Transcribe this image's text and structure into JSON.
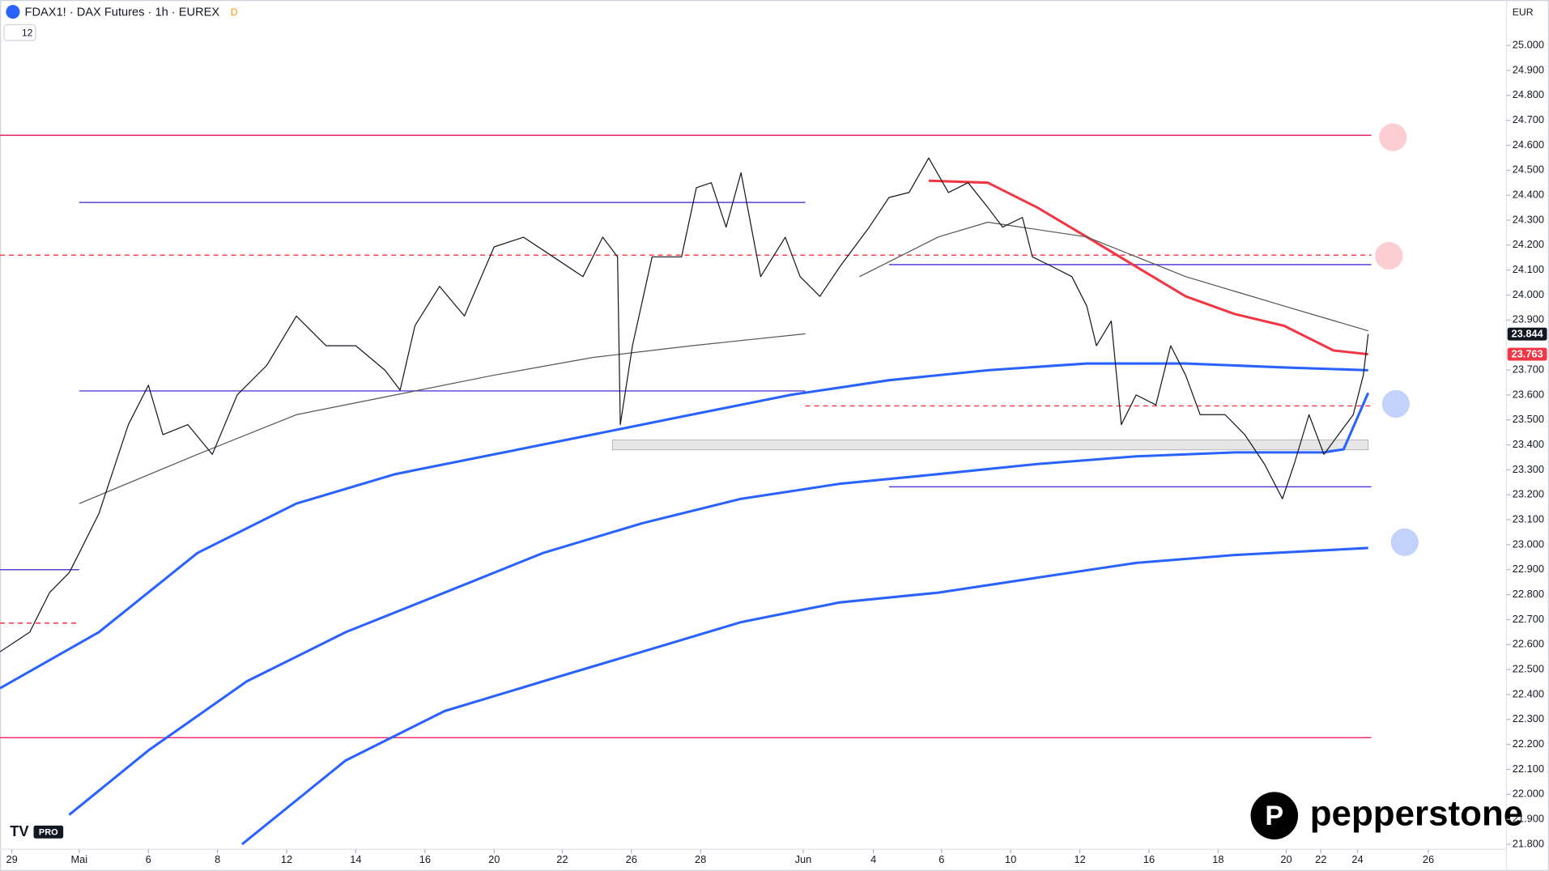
{
  "header": {
    "symbol": "FDAX1! · DAX Futures · 1h · EUREX",
    "badge": "D",
    "indicator_count": "12",
    "currency": "EUR"
  },
  "branding": {
    "logo": "pepperstone",
    "watermark": "PRO"
  },
  "chart_data": {
    "type": "line",
    "xlim": [
      0,
      43.57
    ],
    "xticks": [
      {
        "value": 0.34,
        "label": "29"
      },
      {
        "value": 2.29,
        "label": "Mai"
      },
      {
        "value": 4.29,
        "label": "6"
      },
      {
        "value": 6.29,
        "label": "8"
      },
      {
        "value": 8.29,
        "label": "12"
      },
      {
        "value": 10.29,
        "label": "14"
      },
      {
        "value": 12.29,
        "label": "16"
      },
      {
        "value": 14.29,
        "label": "20"
      },
      {
        "value": 16.26,
        "label": "22"
      },
      {
        "value": 18.26,
        "label": "26"
      },
      {
        "value": 20.26,
        "label": "28"
      },
      {
        "value": 23.23,
        "label": "Jun"
      },
      {
        "value": 25.26,
        "label": "4"
      },
      {
        "value": 27.23,
        "label": "6"
      },
      {
        "value": 29.23,
        "label": "10"
      },
      {
        "value": 31.23,
        "label": "12"
      },
      {
        "value": 33.23,
        "label": "16"
      },
      {
        "value": 35.23,
        "label": "18"
      },
      {
        "value": 37.2,
        "label": "20"
      },
      {
        "value": 38.2,
        "label": "22"
      },
      {
        "value": 39.26,
        "label": "24"
      },
      {
        "value": 41.31,
        "label": "26"
      }
    ],
    "ylim": [
      21780,
      25182
    ],
    "yticks": [
      {
        "value": 21800,
        "label": "21.800"
      },
      {
        "value": 21900,
        "label": "21.900"
      },
      {
        "value": 22000,
        "label": "22.000"
      },
      {
        "value": 22100,
        "label": "22.100"
      },
      {
        "value": 22200,
        "label": "22.200"
      },
      {
        "value": 22300,
        "label": "22.300"
      },
      {
        "value": 22400,
        "label": "22.400"
      },
      {
        "value": 22500,
        "label": "22.500"
      },
      {
        "value": 22600,
        "label": "22.600"
      },
      {
        "value": 22700,
        "label": "22.700"
      },
      {
        "value": 22800,
        "label": "22.800"
      },
      {
        "value": 22900,
        "label": "22.900"
      },
      {
        "value": 23000,
        "label": "23.000"
      },
      {
        "value": 23100,
        "label": "23.100"
      },
      {
        "value": 23200,
        "label": "23.200"
      },
      {
        "value": 23300,
        "label": "23.300"
      },
      {
        "value": 23400,
        "label": "23.400"
      },
      {
        "value": 23500,
        "label": "23.500"
      },
      {
        "value": 23600,
        "label": "23.600"
      },
      {
        "value": 23700,
        "label": "23.700"
      },
      {
        "value": 23900,
        "label": "23.900"
      },
      {
        "value": 24000,
        "label": "24.000"
      },
      {
        "value": 24100,
        "label": "24.100"
      },
      {
        "value": 24200,
        "label": "24.200"
      },
      {
        "value": 24300,
        "label": "24.300"
      },
      {
        "value": 24400,
        "label": "24.400"
      },
      {
        "value": 24500,
        "label": "24.500"
      },
      {
        "value": 24600,
        "label": "24.600"
      },
      {
        "value": 24700,
        "label": "24.700"
      },
      {
        "value": 24800,
        "label": "24.800"
      },
      {
        "value": 24900,
        "label": "24.900"
      },
      {
        "value": 25000,
        "label": "25.000"
      }
    ],
    "series": [
      {
        "color": "#131722",
        "width": 1,
        "x": [
          0,
          0.86,
          1.43,
          2,
          2.29,
          2.86,
          3.71,
          4.29,
          4.71,
          5.43,
          6.14,
          6.86,
          7.71,
          8.57,
          9.43,
          10.29,
          11.14,
          11.57,
          12,
          12.71,
          13.43,
          14.29,
          15.14,
          16,
          16.86,
          17.43,
          17.86,
          17.94,
          18.29,
          18.86,
          19.71,
          20.14,
          20.57,
          21,
          21.43,
          22,
          22.71,
          23.14,
          23.71,
          24.29,
          25.14,
          25.71,
          26.29,
          26.86,
          27.43,
          28,
          28.57,
          29,
          29.57,
          29.86,
          30.43,
          31,
          31.43,
          31.71,
          32.14,
          32.43,
          32.86,
          33.43,
          33.86,
          34.29,
          34.71,
          35.43,
          36,
          36.57,
          37.09,
          37.43,
          37.86,
          38.29,
          38.71,
          39.14,
          39.43,
          39.57
        ],
        "values": [
          22571,
          22650,
          22808,
          22888,
          22967,
          23125,
          23481,
          23639,
          23441,
          23481,
          23362,
          23600,
          23718,
          23916,
          23797,
          23797,
          23698,
          23619,
          23877,
          24035,
          23916,
          24193,
          24232,
          24153,
          24074,
          24232,
          24153,
          23481,
          23797,
          24153,
          24153,
          24430,
          24450,
          24272,
          24490,
          24074,
          24232,
          24074,
          23995,
          24114,
          24272,
          24391,
          24411,
          24549,
          24411,
          24450,
          24351,
          24272,
          24311,
          24153,
          24114,
          24074,
          23956,
          23797,
          23896,
          23481,
          23600,
          23560,
          23797,
          23679,
          23521,
          23521,
          23441,
          23323,
          23184,
          23323,
          23521,
          23362,
          23441,
          23521,
          23679,
          23844
        ]
      },
      {
        "color": "#2962ff",
        "width": 2.5,
        "x": [
          0,
          2.86,
          5.71,
          8.57,
          11.43,
          14.29,
          17.14,
          20,
          22.86,
          25.71,
          28.57,
          31.43,
          34.29,
          37.14,
          39.57
        ],
        "values": [
          22425,
          22650,
          22967,
          23165,
          23283,
          23362,
          23441,
          23521,
          23600,
          23659,
          23699,
          23726,
          23726,
          23710,
          23699
        ]
      },
      {
        "color": "#2962ff",
        "width": 2.5,
        "x": [
          2,
          4.29,
          7.14,
          10,
          12.86,
          15.71,
          18.57,
          21.43,
          24.29,
          27.14,
          30,
          32.86,
          35.71,
          38.29,
          38.86,
          39.57
        ],
        "values": [
          21918,
          22176,
          22453,
          22650,
          22808,
          22967,
          23086,
          23184,
          23244,
          23283,
          23323,
          23354,
          23370,
          23370,
          23382,
          23608
        ]
      },
      {
        "color": "#2962ff",
        "width": 2.5,
        "x": [
          7,
          10,
          12.86,
          15.71,
          18.57,
          21.43,
          24.29,
          27.14,
          30,
          32.86,
          35.71,
          39.57
        ],
        "values": [
          21800,
          22136,
          22334,
          22453,
          22571,
          22690,
          22769,
          22808,
          22868,
          22927,
          22959,
          22987
        ]
      },
      {
        "color": "#f23645",
        "width": 2.5,
        "x": [
          26.86,
          28.57,
          30,
          31.43,
          32.86,
          34.29,
          35.71,
          37.14,
          38.57,
          39.57
        ],
        "values": [
          24458,
          24450,
          24351,
          24233,
          24114,
          23995,
          23924,
          23877,
          23778,
          23763
        ]
      },
      {
        "color": "#555555",
        "width": 1,
        "x": [
          2.29,
          5.71,
          8.57,
          11.43,
          14.29,
          17.14,
          20,
          23.29,
          23.3,
          24.86,
          27.14,
          28.57,
          31.43,
          34.29,
          37.14,
          39.57
        ],
        "values": [
          23165,
          23362,
          23521,
          23600,
          23679,
          23750,
          23797,
          23845,
          null,
          24074,
          24233,
          24292,
          24233,
          24074,
          23956,
          23857
        ]
      }
    ],
    "hlines": [
      {
        "value": 24640,
        "x": [
          0,
          39.66
        ],
        "color": "#e91e63",
        "dashed": false
      },
      {
        "value": 22227,
        "x": [
          0,
          39.66
        ],
        "color": "#e91e63",
        "dashed": false
      },
      {
        "value": 24371,
        "x": [
          2.29,
          23.29
        ],
        "color": "#5b3fd6",
        "dashed": false
      },
      {
        "value": 24122,
        "x": [
          25.71,
          39.66
        ],
        "color": "#5b3fd6",
        "dashed": false
      },
      {
        "value": 23616,
        "x": [
          2.29,
          23.29
        ],
        "color": "#5b3fd6",
        "dashed": false
      },
      {
        "value": 23232,
        "x": [
          25.71,
          39.66
        ],
        "color": "#5b3fd6",
        "dashed": false
      },
      {
        "value": 22900,
        "x": [
          0,
          2.29
        ],
        "color": "#5b3fd6",
        "dashed": false
      },
      {
        "value": 24160,
        "x": [
          0,
          39.66
        ],
        "color": "#f23645",
        "dashed": true
      },
      {
        "value": 23556,
        "x": [
          23.29,
          39.66
        ],
        "color": "#f23645",
        "dashed": true
      },
      {
        "value": 22686,
        "x": [
          0,
          2.29
        ],
        "color": "#f23645",
        "dashed": true
      }
    ],
    "zones": [
      {
        "x": [
          17.71,
          39.57
        ],
        "y": [
          23380,
          23420
        ]
      }
    ],
    "price_labels": [
      {
        "value": 23844,
        "label": "23.844",
        "color": "#131722"
      },
      {
        "value": 23763,
        "label": "23.763",
        "color": "#f23645"
      }
    ]
  }
}
